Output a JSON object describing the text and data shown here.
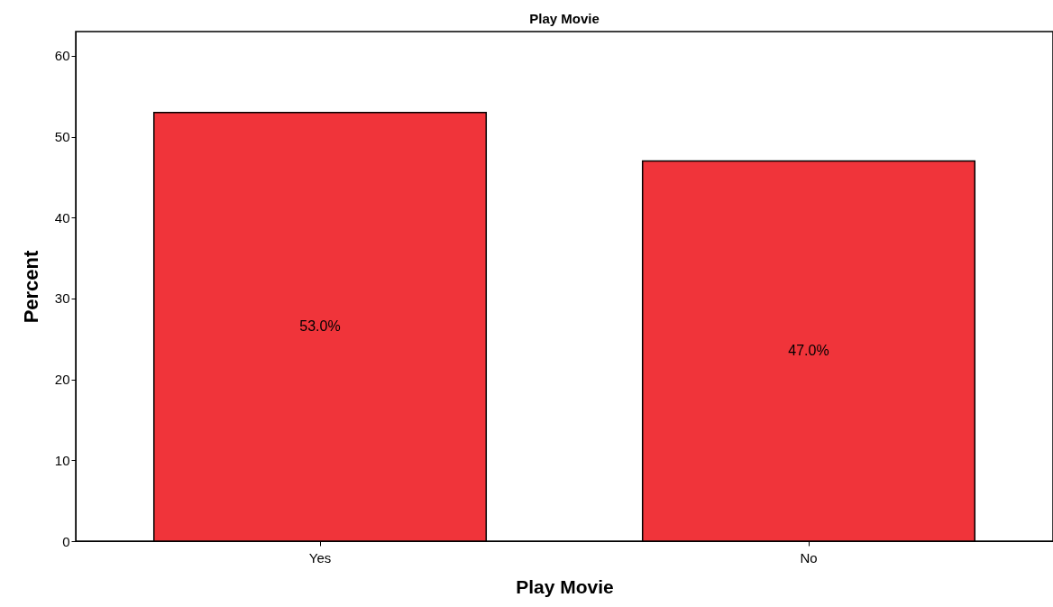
{
  "chart_data": {
    "type": "bar",
    "title": "Play Movie",
    "xlabel": "Play Movie",
    "ylabel": "Percent",
    "categories": [
      "Yes",
      "No"
    ],
    "values": [
      53.0,
      47.0
    ],
    "value_labels": [
      "53.0%",
      "47.0%"
    ],
    "color": "#f0343a",
    "ylim": [
      0,
      63
    ],
    "yticks": [
      0,
      10,
      20,
      30,
      40,
      50,
      60
    ],
    "grid": false
  }
}
